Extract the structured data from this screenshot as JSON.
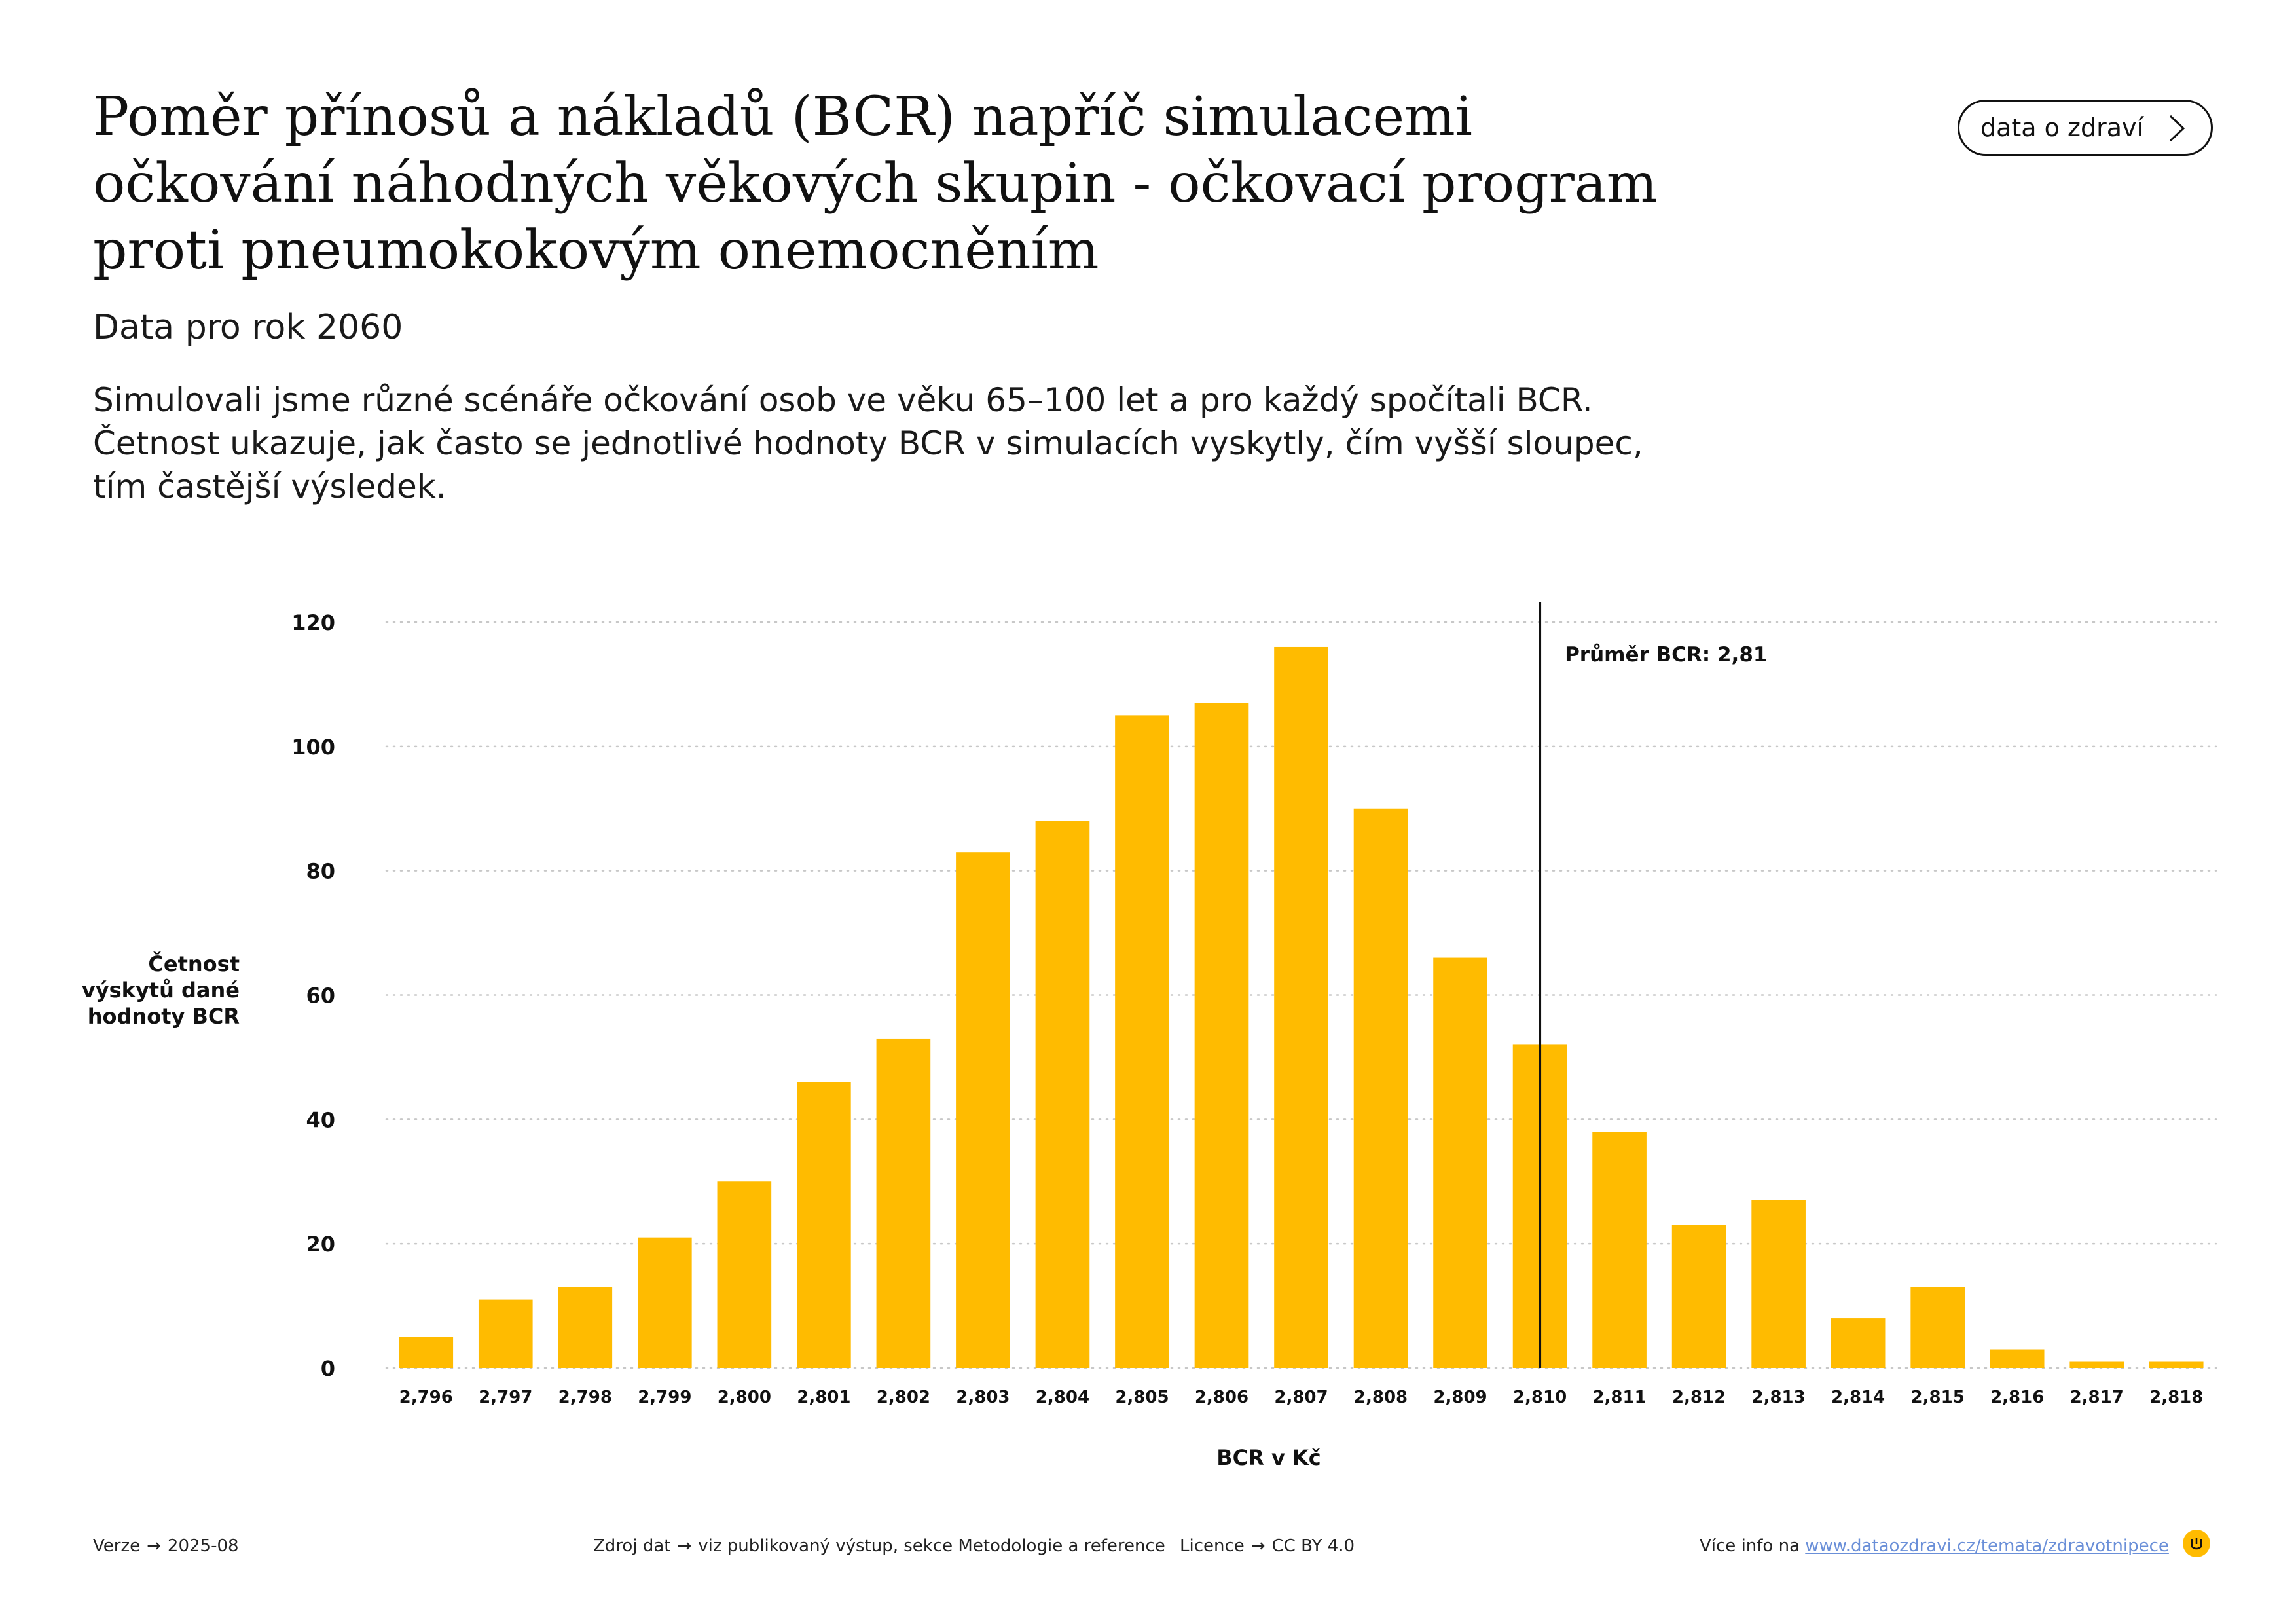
{
  "header": {
    "title": "Poměr přínosů a nákladů (BCR) napříč simulacemi očkování náhodných věkových skupin - očkovací program proti pneumokokovým onemocněním",
    "subtitle": "Data pro rok 2060",
    "description": "Simulovali jsme různé scénáře očkování osob ve věku 65–100 let a pro každý spočítali BCR. Četnost ukazuje, jak často se jednotlivé hodnoty BCR v simulacích vyskytly, čím vyšší sloupec, tím častější výsledek."
  },
  "brand": {
    "label": "data o zdraví",
    "arrow_icon": "chevron-right-icon"
  },
  "chart_data": {
    "type": "bar",
    "title": "",
    "xlabel": "BCR v Kč",
    "ylabel_lines": [
      "Četnost",
      "výskytů dané",
      "hodnoty BCR"
    ],
    "categories": [
      "2,796",
      "2,797",
      "2,798",
      "2,799",
      "2,800",
      "2,801",
      "2,802",
      "2,803",
      "2,804",
      "2,805",
      "2,806",
      "2,807",
      "2,808",
      "2,809",
      "2,810",
      "2,811",
      "2,812",
      "2,813",
      "2,814",
      "2,815",
      "2,816",
      "2,817",
      "2,818"
    ],
    "values": [
      5,
      11,
      13,
      21,
      30,
      46,
      53,
      83,
      88,
      105,
      107,
      116,
      90,
      66,
      52,
      38,
      23,
      27,
      8,
      13,
      3,
      1,
      1
    ],
    "ylim": [
      0,
      120
    ],
    "yticks": [
      0,
      20,
      40,
      60,
      80,
      100,
      120
    ],
    "grid": true,
    "bar_color": "#ffbb00",
    "reference_line": {
      "category": "2,810",
      "label": "Průměr BCR: 2,81"
    }
  },
  "footer": {
    "version_label": "Verze",
    "version_value": "2025-08",
    "source_label": "Zdroj dat",
    "source_value": "viz publikovaný výstup, sekce Metodologie a reference",
    "license_label": "Licence",
    "license_value": "CC BY 4.0",
    "info_label": "Více info na",
    "info_link": "www.dataozdravi.cz/temata/zdravotnipece",
    "arrow": "→"
  },
  "logo": {
    "icon": "brand-logo-icon",
    "color": "#ffbb00"
  }
}
